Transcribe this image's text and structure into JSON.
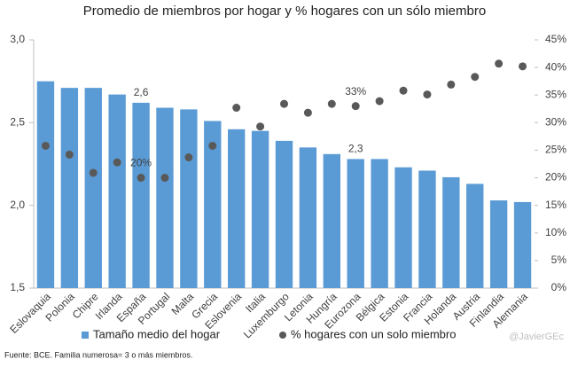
{
  "chart_data": {
    "type": "bar-dot",
    "title": "Promedio de miembros por hogar y % hogares con un sólo miembro",
    "categories": [
      "Eslovaquia",
      "Polonia",
      "Chipre",
      "Irlanda",
      "España",
      "Portugal",
      "Malta",
      "Grecia",
      "Eslovenia",
      "Italia",
      "Luxemburgo",
      "Letonia",
      "Hungría",
      "Eurozona",
      "Bélgica",
      "Estonia",
      "Francia",
      "Holanda",
      "Austria",
      "Finlandia",
      "Alemania"
    ],
    "series": [
      {
        "name": "Tamaño medio del hogar",
        "color": "#5b9bd5",
        "kind": "bar",
        "values": [
          2.75,
          2.71,
          2.71,
          2.67,
          2.62,
          2.59,
          2.58,
          2.51,
          2.46,
          2.45,
          2.39,
          2.35,
          2.31,
          2.28,
          2.28,
          2.23,
          2.21,
          2.17,
          2.13,
          2.03,
          2.02
        ],
        "value_labels": [
          null,
          null,
          null,
          null,
          "2,6",
          null,
          null,
          null,
          null,
          null,
          null,
          null,
          null,
          "2,3",
          null,
          null,
          null,
          null,
          null,
          null,
          null
        ]
      },
      {
        "name": "% hogares con un solo miembro",
        "color": "#595959",
        "kind": "dot",
        "axis": "y2",
        "values": [
          25.8,
          24.2,
          20.9,
          22.8,
          20,
          20,
          23.7,
          25.8,
          32.7,
          29.3,
          33.4,
          31.8,
          33.4,
          33,
          33.9,
          35.8,
          35.1,
          36.9,
          38.3,
          40.7,
          40.2
        ],
        "value_labels": [
          null,
          null,
          null,
          null,
          "20%",
          null,
          null,
          null,
          null,
          null,
          null,
          null,
          null,
          "33%",
          null,
          null,
          null,
          null,
          null,
          null,
          null
        ]
      }
    ],
    "ylim": [
      1.5,
      3.0
    ],
    "yticks": [
      {
        "value": 1.5,
        "label": "1,5"
      },
      {
        "value": 2.0,
        "label": "2,0"
      },
      {
        "value": 2.5,
        "label": "2,5"
      },
      {
        "value": 3.0,
        "label": "3,0"
      }
    ],
    "y2lim": [
      0,
      45
    ],
    "y2ticks": [
      {
        "value": 0,
        "label": "0%"
      },
      {
        "value": 5,
        "label": "5%"
      },
      {
        "value": 10,
        "label": "10%"
      },
      {
        "value": 15,
        "label": "15%"
      },
      {
        "value": 20,
        "label": "20%"
      },
      {
        "value": 25,
        "label": "25%"
      },
      {
        "value": 30,
        "label": "30%"
      },
      {
        "value": 35,
        "label": "35%"
      },
      {
        "value": 40,
        "label": "40%"
      },
      {
        "value": 45,
        "label": "45%"
      }
    ],
    "grid": false,
    "source": "Fuente: BCE. Familia numerosa= 3 o más miembros.",
    "credit": "@JavierGEc"
  }
}
